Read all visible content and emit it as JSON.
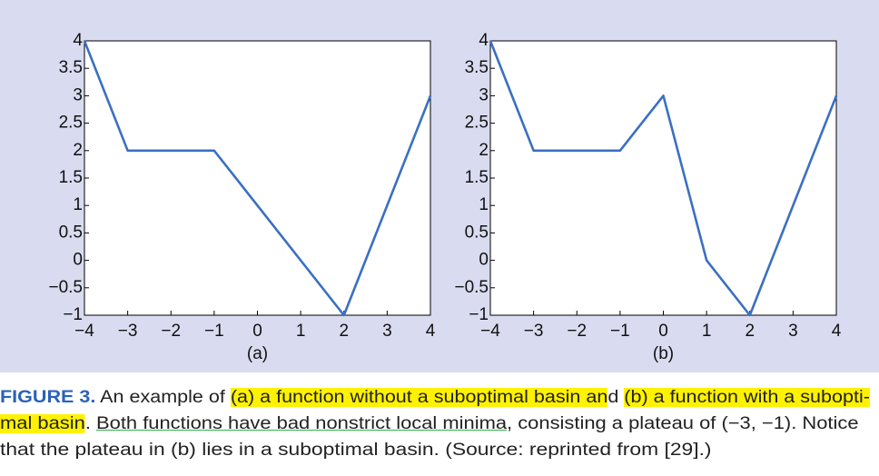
{
  "chart_data": [
    {
      "type": "line",
      "xlabel": "(a)",
      "color": "#3b6fc2",
      "x": [
        -4,
        -3,
        -1,
        2,
        4
      ],
      "values": [
        4,
        2,
        2,
        -1,
        3
      ],
      "xlim": [
        -4,
        4
      ],
      "ylim": [
        -1,
        4
      ],
      "xticks": [
        {
          "value": -4,
          "label": "−4"
        },
        {
          "value": -3,
          "label": "−3"
        },
        {
          "value": -2,
          "label": "−2"
        },
        {
          "value": -1,
          "label": "−1"
        },
        0,
        1,
        2,
        3,
        4
      ],
      "yticks": [
        {
          "value": -1,
          "label": "−1"
        },
        {
          "value": -0.5,
          "label": "−0.5"
        },
        0,
        0.5,
        1,
        1.5,
        2,
        2.5,
        3,
        3.5,
        4
      ]
    },
    {
      "type": "line",
      "xlabel": "(b)",
      "color": "#3b6fc2",
      "x": [
        -4,
        -3,
        -1,
        0,
        1,
        2,
        4
      ],
      "values": [
        4,
        2,
        2,
        3,
        0,
        -1,
        3
      ],
      "xlim": [
        -4,
        4
      ],
      "ylim": [
        -1,
        4
      ],
      "xticks": [
        {
          "value": -4,
          "label": "−4"
        },
        {
          "value": -3,
          "label": "−3"
        },
        {
          "value": -2,
          "label": "−2"
        },
        {
          "value": -1,
          "label": "−1"
        },
        0,
        1,
        2,
        3,
        4
      ],
      "yticks": [
        {
          "value": -1,
          "label": "−1"
        },
        {
          "value": -0.5,
          "label": "−0.5"
        },
        0,
        0.5,
        1,
        1.5,
        2,
        2.5,
        3,
        3.5,
        4
      ]
    }
  ],
  "caption": {
    "lines": [
      [
        {
          "text": "FIGURE 3.",
          "style": "label"
        },
        {
          "text": " An example of "
        },
        {
          "text": "(a) a function without a suboptimal basin an",
          "style": "highlight"
        },
        {
          "text": "d "
        },
        {
          "text": "(b) a function with a subopti-",
          "style": "highlight"
        }
      ],
      [
        {
          "text": "mal basin",
          "style": "highlight"
        },
        {
          "text": ". "
        },
        {
          "text": "Both functions have bad nonstrict local minima",
          "style": "underline"
        },
        {
          "text": ", consisting a plateau of (−3, −1). Notice"
        }
      ],
      [
        {
          "text": "that the plateau in (b) lies in a suboptimal basin. (Source: reprinted from [29].)"
        }
      ]
    ]
  }
}
